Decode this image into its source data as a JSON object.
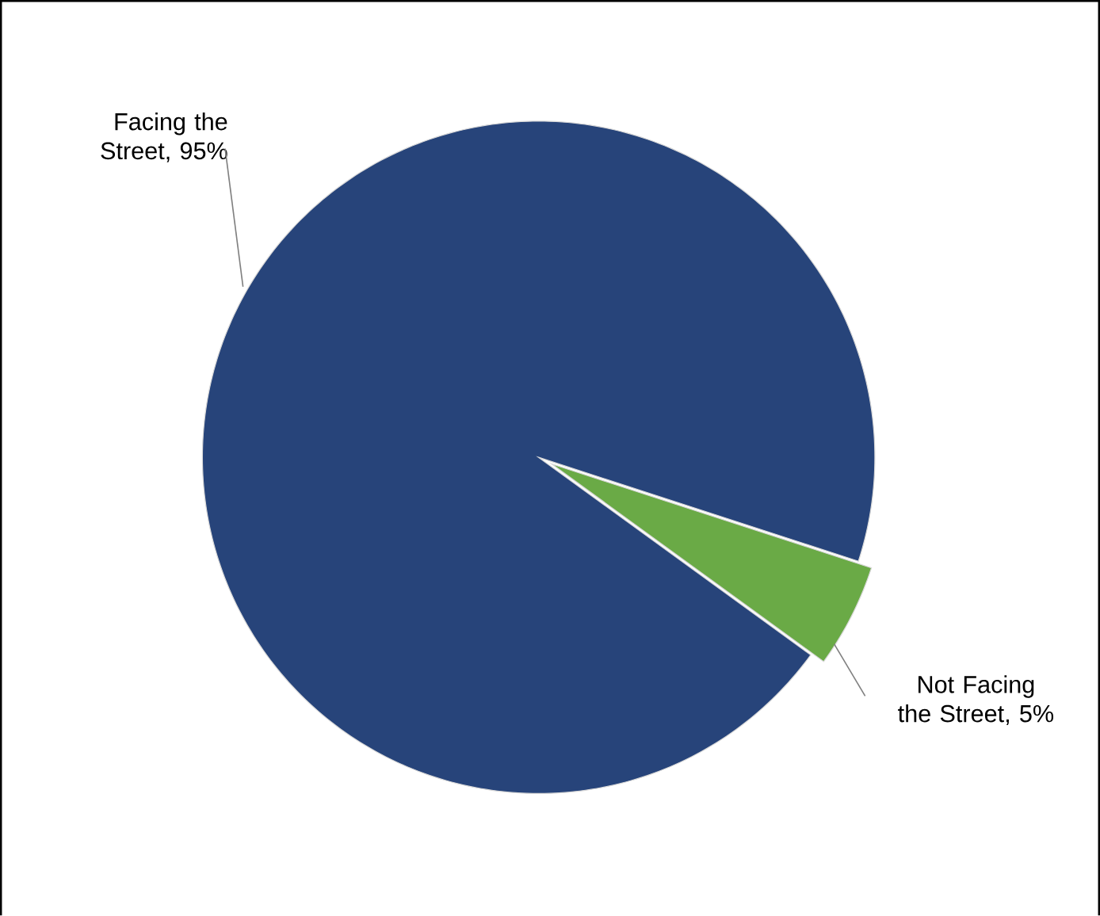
{
  "chart_data": {
    "type": "pie",
    "categories": [
      "Facing the Street",
      "Not Facing the Street"
    ],
    "values": [
      95,
      5
    ],
    "value_labels": [
      ", 95%",
      ", 5%"
    ],
    "colors": [
      "#27447a",
      "#6aaa46"
    ]
  }
}
